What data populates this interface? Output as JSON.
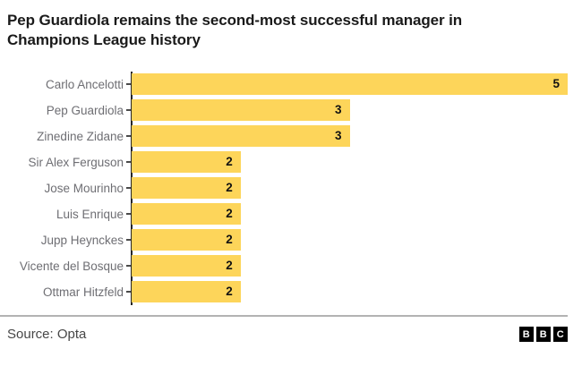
{
  "header": {
    "title": "Pep Guardiola remains the second-most successful manager in Champions League history"
  },
  "chart_data": {
    "type": "bar",
    "orientation": "horizontal",
    "title": "Pep Guardiola remains the second-most successful manager in Champions League history",
    "categories": [
      "Carlo Ancelotti",
      "Pep Guardiola",
      "Zinedine Zidane",
      "Sir Alex Ferguson",
      "Jose Mourinho",
      "Luis Enrique",
      "Jupp Heynckes",
      "Vicente del Bosque",
      "Ottmar Hitzfeld"
    ],
    "values": [
      5,
      3,
      3,
      2,
      2,
      2,
      2,
      2,
      2
    ],
    "xlabel": "",
    "ylabel": "",
    "xlim": [
      1,
      5
    ],
    "grid": false,
    "legend": false,
    "value_labels": "inside-bar-right"
  },
  "footer": {
    "source_label": "Source: Opta",
    "logo_letters": [
      "B",
      "B",
      "C"
    ]
  },
  "colors": {
    "bar": "#FDD55A",
    "title_text": "#1a1a1a",
    "label_text": "#6e6e73",
    "value_text": "#111111",
    "axis": "#262626",
    "tick": "#4a4a4a",
    "divider": "#b3b3b3",
    "source_text": "#474747",
    "logo_bg": "#000000",
    "logo_text": "#ffffff"
  }
}
